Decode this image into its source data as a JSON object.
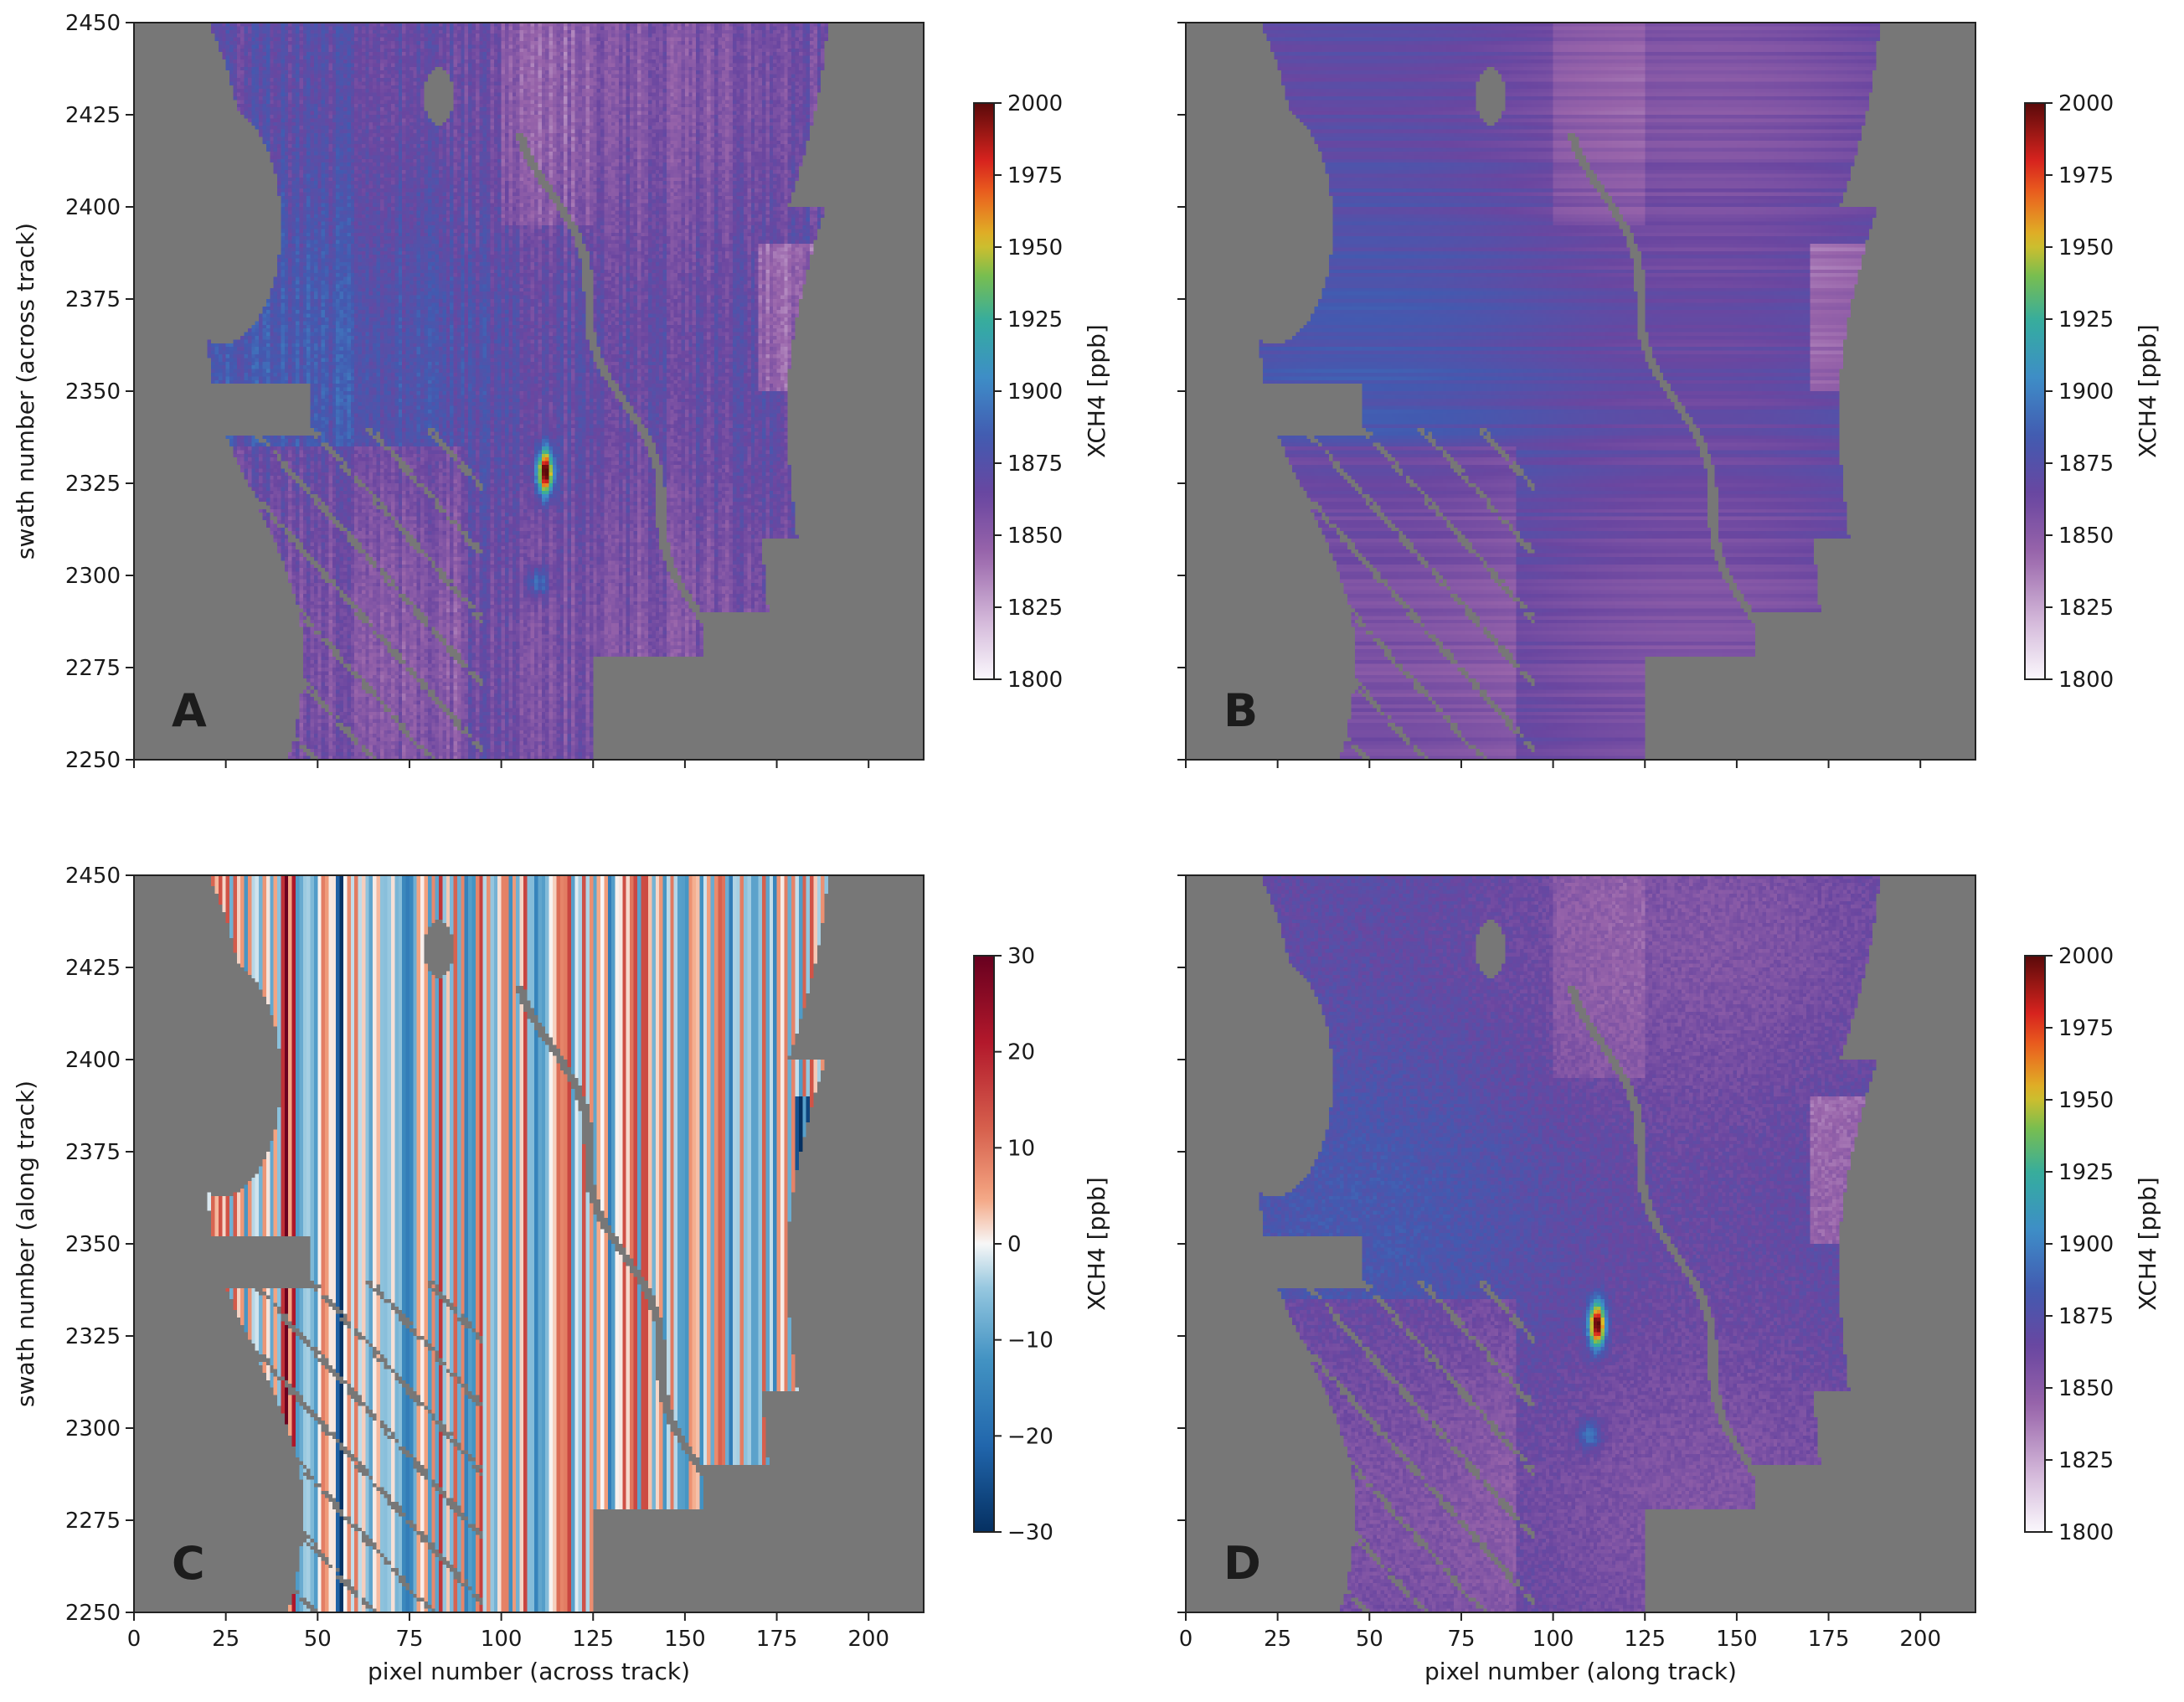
{
  "chart_data": [
    {
      "panel": "A",
      "type": "heatmap",
      "letter": "A",
      "xlabel": "",
      "ylabel": "swath number (across track)",
      "xlim": [
        0,
        215
      ],
      "ylim": [
        2250,
        2450
      ],
      "xticks": [
        0,
        25,
        50,
        75,
        100,
        125,
        150,
        175,
        200
      ],
      "yticks": [
        2250,
        2275,
        2300,
        2325,
        2350,
        2375,
        2400,
        2425,
        2450
      ],
      "show_xtick_labels": false,
      "show_ytick_labels": true,
      "colorbar": {
        "label": "XCH4 [ppb]",
        "ticks": [
          1800,
          1825,
          1850,
          1875,
          1900,
          1925,
          1950,
          1975,
          2000
        ],
        "range": [
          1800,
          2000
        ],
        "cmap": "sequential"
      },
      "background_nodata_color": "#777777",
      "field": {
        "mode": "xch4",
        "stripes": "strong_vertical",
        "plume": {
          "center": [
            112,
            2328
          ],
          "value": 2000
        },
        "secondary_enhancement": [
          110,
          2298
        ]
      }
    },
    {
      "panel": "B",
      "type": "heatmap",
      "letter": "B",
      "xlabel": "",
      "ylabel": "",
      "xlim": [
        0,
        215
      ],
      "ylim": [
        2250,
        2450
      ],
      "xticks": [
        0,
        25,
        50,
        75,
        100,
        125,
        150,
        175,
        200
      ],
      "yticks": [
        2250,
        2275,
        2300,
        2325,
        2350,
        2375,
        2400,
        2425,
        2450
      ],
      "show_xtick_labels": false,
      "show_ytick_labels": false,
      "colorbar": {
        "label": "XCH4 [ppb]",
        "ticks": [
          1800,
          1825,
          1850,
          1875,
          1900,
          1925,
          1950,
          1975,
          2000
        ],
        "range": [
          1800,
          2000
        ],
        "cmap": "sequential"
      },
      "background_nodata_color": "#777777",
      "field": {
        "mode": "xch4_smooth",
        "stripes": "horizontal",
        "plume": null
      }
    },
    {
      "panel": "C",
      "type": "heatmap",
      "letter": "C",
      "xlabel": "pixel number (across track)",
      "ylabel": "swath number (along track)",
      "xlim": [
        0,
        215
      ],
      "ylim": [
        2250,
        2450
      ],
      "xticks": [
        0,
        25,
        50,
        75,
        100,
        125,
        150,
        175,
        200
      ],
      "yticks": [
        2250,
        2275,
        2300,
        2325,
        2350,
        2375,
        2400,
        2425,
        2450
      ],
      "show_xtick_labels": true,
      "show_ytick_labels": true,
      "colorbar": {
        "label": "XCH4 [ppb]",
        "ticks": [
          -30,
          -20,
          -10,
          0,
          10,
          20,
          30
        ],
        "range": [
          -30,
          30
        ],
        "cmap": "diverging"
      },
      "background_nodata_color": "#777777",
      "field": {
        "mode": "difference",
        "stripes": "vertical"
      }
    },
    {
      "panel": "D",
      "type": "heatmap",
      "letter": "D",
      "xlabel": "pixel number (along track)",
      "ylabel": "",
      "xlim": [
        0,
        215
      ],
      "ylim": [
        2250,
        2450
      ],
      "xticks": [
        0,
        25,
        50,
        75,
        100,
        125,
        150,
        175,
        200
      ],
      "yticks": [
        2250,
        2275,
        2300,
        2325,
        2350,
        2375,
        2400,
        2425,
        2450
      ],
      "show_xtick_labels": true,
      "show_ytick_labels": false,
      "colorbar": {
        "label": "XCH4 [ppb]",
        "ticks": [
          1800,
          1825,
          1850,
          1875,
          1900,
          1925,
          1950,
          1975,
          2000
        ],
        "range": [
          1800,
          2000
        ],
        "cmap": "sequential"
      },
      "background_nodata_color": "#777777",
      "field": {
        "mode": "xch4",
        "stripes": "none",
        "plume": {
          "center": [
            112,
            2328
          ],
          "value": 2000
        },
        "secondary_enhancement": [
          110,
          2298
        ]
      }
    }
  ]
}
